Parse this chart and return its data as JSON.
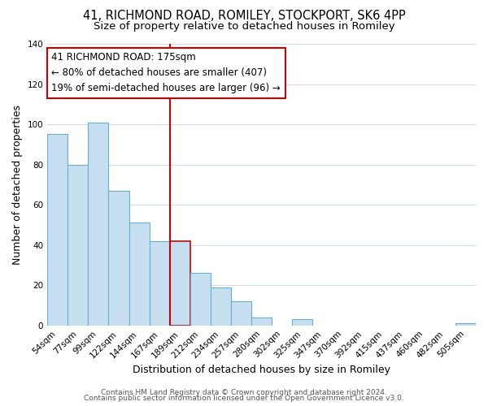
{
  "title": "41, RICHMOND ROAD, ROMILEY, STOCKPORT, SK6 4PP",
  "subtitle": "Size of property relative to detached houses in Romiley",
  "xlabel": "Distribution of detached houses by size in Romiley",
  "ylabel": "Number of detached properties",
  "bar_labels": [
    "54sqm",
    "77sqm",
    "99sqm",
    "122sqm",
    "144sqm",
    "167sqm",
    "189sqm",
    "212sqm",
    "234sqm",
    "257sqm",
    "280sqm",
    "302sqm",
    "325sqm",
    "347sqm",
    "370sqm",
    "392sqm",
    "415sqm",
    "437sqm",
    "460sqm",
    "482sqm",
    "505sqm"
  ],
  "bar_values": [
    95,
    80,
    101,
    67,
    51,
    42,
    42,
    26,
    19,
    12,
    4,
    0,
    3,
    0,
    0,
    0,
    0,
    0,
    0,
    0,
    1
  ],
  "bar_color": "#c5dff0",
  "bar_edge_color": "#6aaed6",
  "highlight_bar_index": 6,
  "highlight_bar_color": "#c5dff0",
  "highlight_bar_edge_color": "#cc0000",
  "vline_x": 5.5,
  "vline_color": "#cc0000",
  "annotation_title": "41 RICHMOND ROAD: 175sqm",
  "annotation_line1": "← 80% of detached houses are smaller (407)",
  "annotation_line2": "19% of semi-detached houses are larger (96) →",
  "annotation_box_color": "#ffffff",
  "annotation_box_edge_color": "#cc0000",
  "ylim": [
    0,
    140
  ],
  "yticks": [
    0,
    20,
    40,
    60,
    80,
    100,
    120,
    140
  ],
  "footer1": "Contains HM Land Registry data © Crown copyright and database right 2024.",
  "footer2": "Contains public sector information licensed under the Open Government Licence v3.0.",
  "background_color": "#ffffff",
  "grid_color": "#ccddee",
  "title_fontsize": 10.5,
  "subtitle_fontsize": 9.5,
  "axis_label_fontsize": 9,
  "tick_fontsize": 7.5,
  "annotation_fontsize": 8.5,
  "footer_fontsize": 6.5
}
